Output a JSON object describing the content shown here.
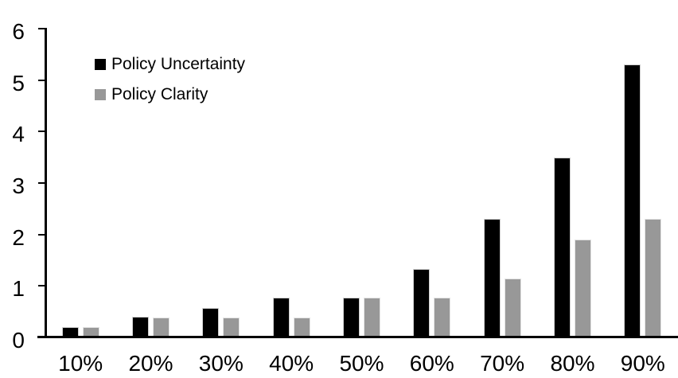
{
  "chart_data": {
    "type": "bar",
    "title": "",
    "xlabel": "",
    "ylabel": "",
    "categories": [
      "10%",
      "20%",
      "30%",
      "40%",
      "50%",
      "60%",
      "70%",
      "80%",
      "90%"
    ],
    "series": [
      {
        "name": "Policy Uncertainty",
        "color": "#000000",
        "values": [
          0.2,
          0.4,
          0.57,
          0.77,
          0.78,
          1.33,
          2.3,
          3.5,
          5.3
        ]
      },
      {
        "name": "Policy Clarity",
        "color": "#989898",
        "values": [
          0.2,
          0.38,
          0.38,
          0.39,
          0.77,
          0.77,
          1.14,
          1.9,
          2.3
        ]
      }
    ],
    "ylim": [
      0,
      6
    ],
    "yticks": [
      0,
      1,
      2,
      3,
      4,
      5,
      6
    ],
    "grid": false,
    "legend_position": "top-left",
    "axis_color": "#000000",
    "background_color": "#ffffff"
  }
}
